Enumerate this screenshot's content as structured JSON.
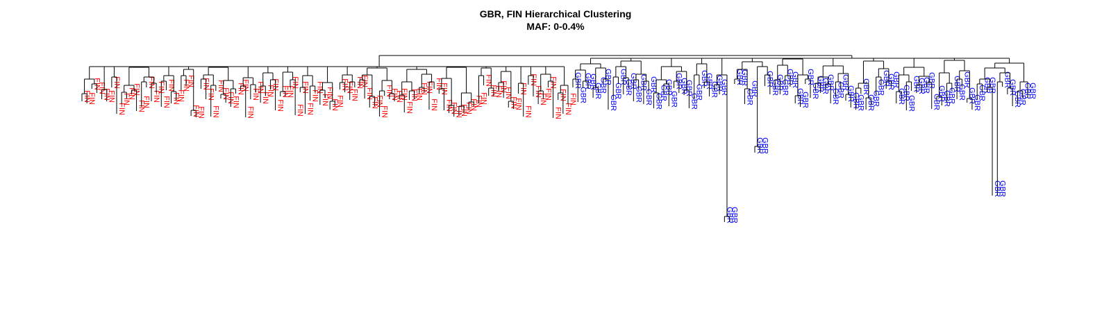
{
  "title": "GBR, FIN Hierarchical Clustering",
  "subtitle": "MAF: 0-0.4%",
  "colors": {
    "FIN": "#ff0000",
    "GBR": "#0000ff",
    "branch": "#000000"
  },
  "populations": [
    {
      "label": "FIN",
      "count": 99
    },
    {
      "label": "GBR",
      "count": 91
    }
  ],
  "outlier_groups": [
    {
      "label": "GBR",
      "count": 2,
      "note": "long branch"
    },
    {
      "label": "GBR",
      "count": 2,
      "note": "long branch"
    },
    {
      "label": "GBR",
      "count": 2,
      "note": "long branch"
    }
  ]
}
